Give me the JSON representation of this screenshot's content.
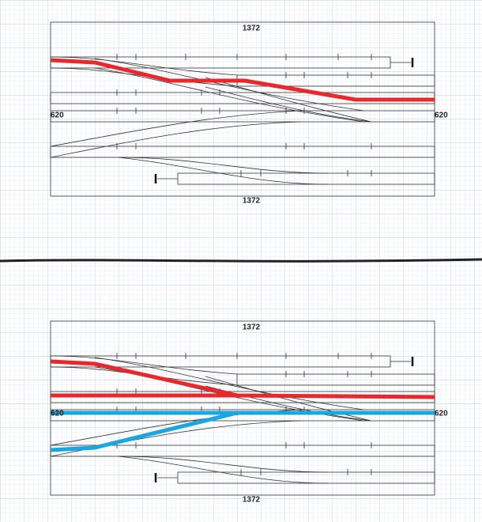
{
  "panels": [
    {
      "top_label": "1372",
      "bottom_label": "1372",
      "left_label": "620",
      "right_label": "620"
    },
    {
      "top_label": "1372",
      "bottom_label": "1372",
      "left_label": "620",
      "right_label": "620"
    }
  ]
}
